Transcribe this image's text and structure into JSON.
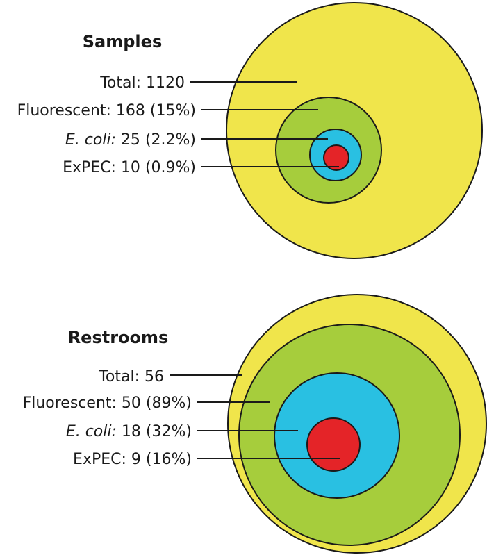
{
  "colors": {
    "total": "#f0e54b",
    "fluorescent": "#a6cd3c",
    "ecoli": "#29c0e2",
    "expec": "#e42428",
    "line": "#1a1a1a"
  },
  "samples": {
    "title": "Samples",
    "rows": [
      {
        "name": "Total:",
        "value": "1120",
        "pct": ""
      },
      {
        "name": "Fluorescent:",
        "value": "168",
        "pct": "(15%)"
      },
      {
        "name": "E. coli:",
        "value": "25",
        "pct": "(2.2%)"
      },
      {
        "name": "ExPEC:",
        "value": "10",
        "pct": "(0.9%)"
      }
    ]
  },
  "restrooms": {
    "title": "Restrooms",
    "rows": [
      {
        "name": "Total:",
        "value": "56",
        "pct": ""
      },
      {
        "name": "Fluorescent:",
        "value": "50",
        "pct": "(89%)"
      },
      {
        "name": "E. coli:",
        "value": "18",
        "pct": "(32%)"
      },
      {
        "name": "ExPEC:",
        "value": "9",
        "pct": "(16%)"
      }
    ]
  }
}
